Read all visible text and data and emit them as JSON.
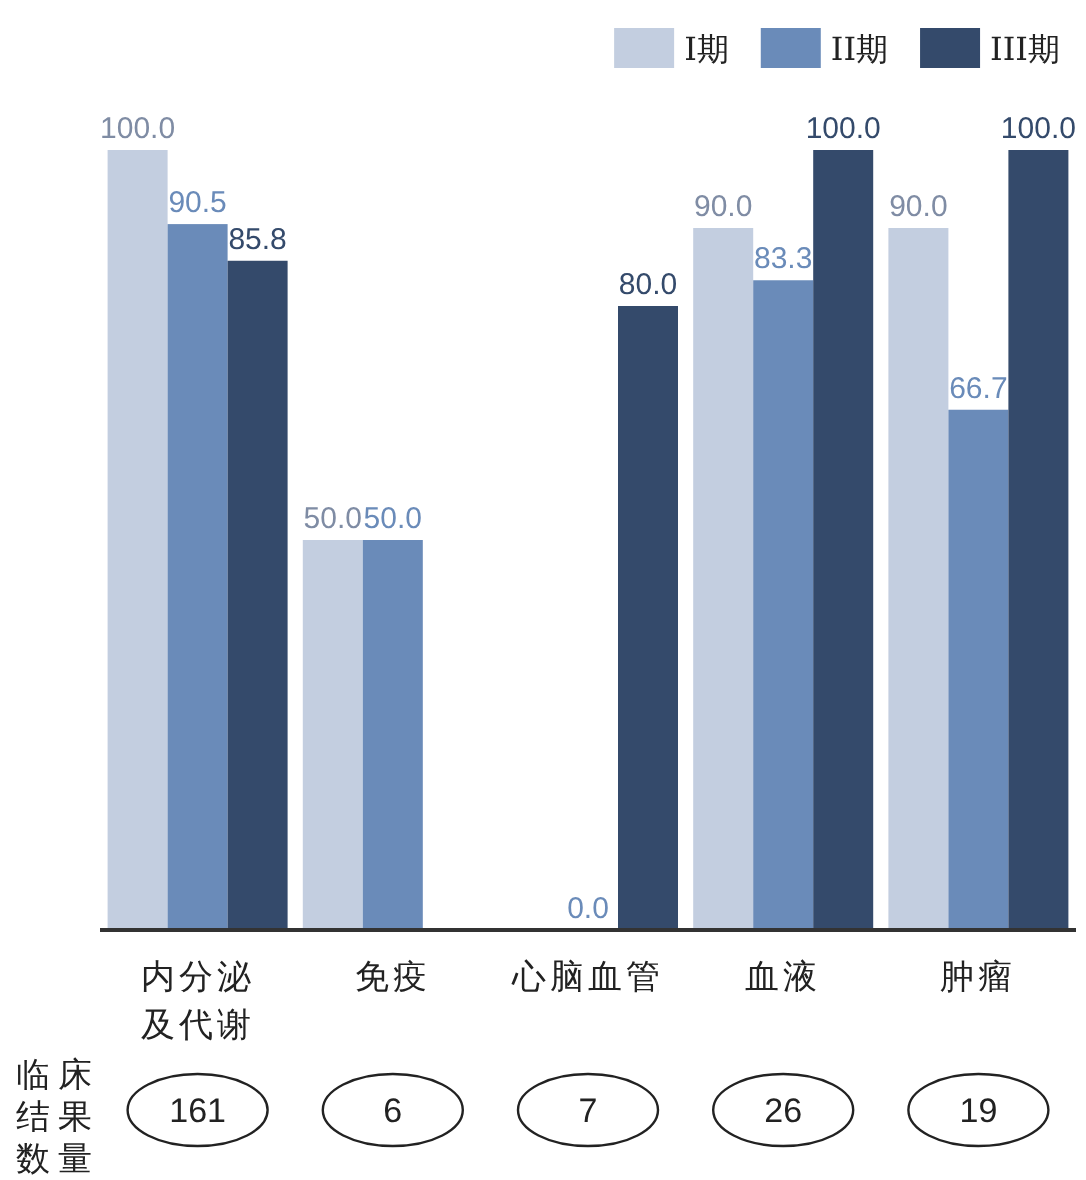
{
  "chart_data": {
    "type": "bar",
    "categories": [
      "内分泌及代谢",
      "免疫",
      "心脑血管",
      "血液",
      "肿瘤"
    ],
    "series": [
      {
        "name": "I期",
        "color": "#c3cee0",
        "values": [
          100.0,
          50.0,
          null,
          90.0,
          90.0
        ],
        "value_labels": [
          "100.0",
          "50.0",
          null,
          "90.0",
          "90.0"
        ]
      },
      {
        "name": "II期",
        "color": "#6a8bb9",
        "values": [
          90.5,
          50.0,
          0.0,
          83.3,
          66.7
        ],
        "value_labels": [
          "90.5",
          "50.0",
          "0.0",
          "83.3",
          "66.7"
        ]
      },
      {
        "name": "III期",
        "color": "#344a6b",
        "values": [
          85.8,
          null,
          80.0,
          100.0,
          100.0
        ],
        "value_labels": [
          "85.8",
          null,
          "80.0",
          "100.0",
          "100.0"
        ]
      }
    ],
    "legend": "top right",
    "annotations": [
      "临床结果数量",
      "161",
      "6",
      "7",
      "26",
      "19"
    ]
  }
}
